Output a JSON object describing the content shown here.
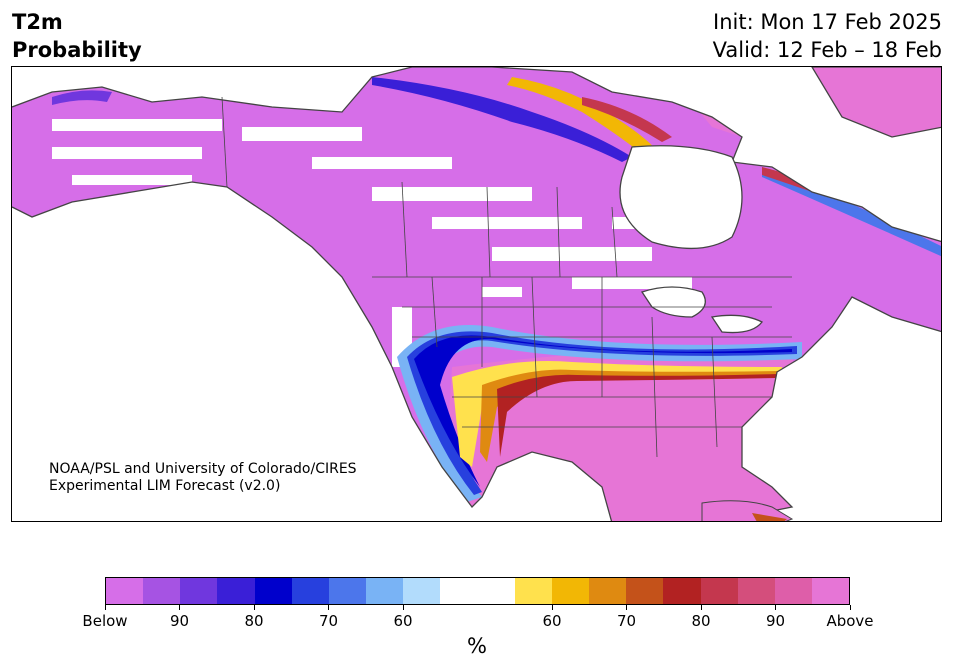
{
  "header": {
    "title_line1": "T2m",
    "title_line2": "Probability",
    "init": "Init: Mon 17 Feb 2025",
    "valid": "Valid: 12 Feb – 18 Feb"
  },
  "credit": {
    "line1": "NOAA/PSL and University of Colorado/CIRES",
    "line2": "Experimental LIM Forecast (v2.0)"
  },
  "colorbar": {
    "unit": "%",
    "colors": [
      "#d66ee8",
      "#a653e3",
      "#7037de",
      "#3a1fd7",
      "#0000cc",
      "#2740de",
      "#4c76eb",
      "#79b3f5",
      "#b2dcfc",
      "#ffffff",
      "#ffffff",
      "#ffe14d",
      "#f2b705",
      "#df8a11",
      "#c4521a",
      "#b22222",
      "#c4374e",
      "#d44e7c",
      "#de5ea9",
      "#e675d6"
    ],
    "tick_labels": [
      "Below",
      "90",
      "80",
      "70",
      "60",
      "60",
      "70",
      "80",
      "90",
      "Above"
    ]
  },
  "map": {
    "land_color": "#d66ee8",
    "warm_color": "#e675d6",
    "cold_core_color": "#0000cc",
    "warm_core_color": "#b22222"
  }
}
